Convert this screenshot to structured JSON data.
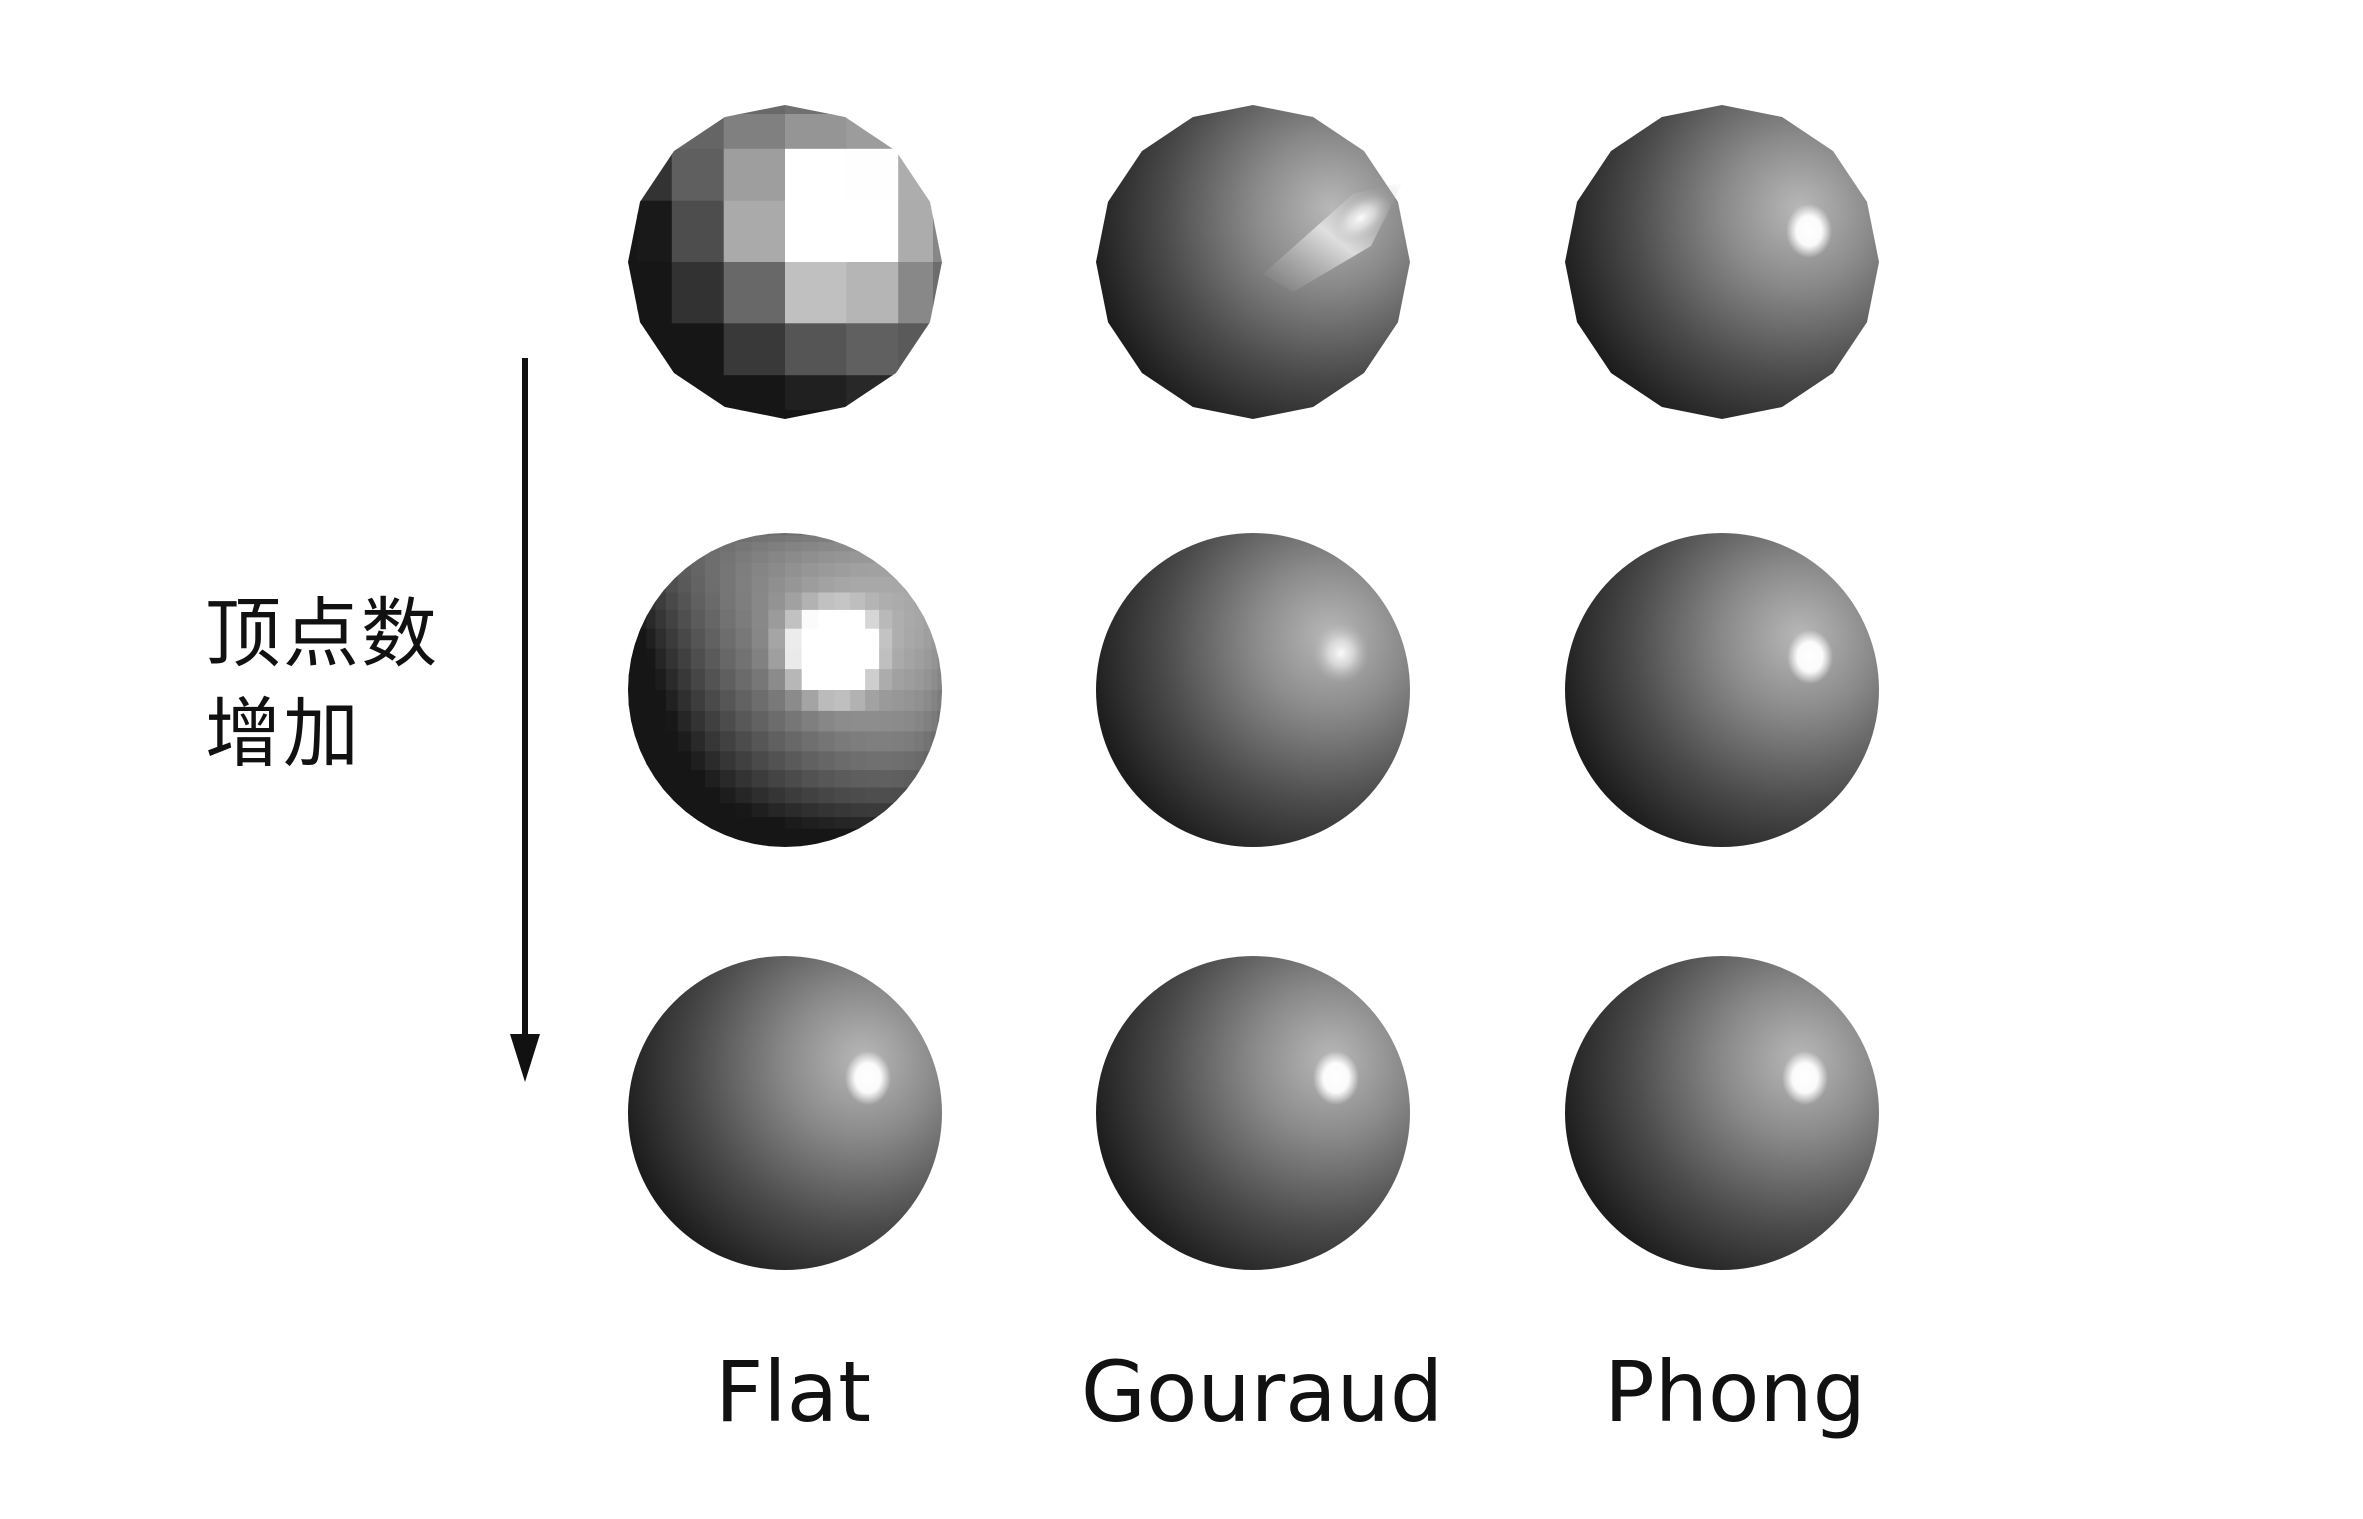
{
  "side_label": {
    "line1": "顶点数",
    "line2": "增加"
  },
  "columns": [
    {
      "label": "Flat",
      "shading": "flat"
    },
    {
      "label": "Gouraud",
      "shading": "gouraud"
    },
    {
      "label": "Phong",
      "shading": "phong"
    }
  ],
  "rows": [
    {
      "tessellation": "low"
    },
    {
      "tessellation": "medium"
    },
    {
      "tessellation": "high"
    }
  ],
  "colors": {
    "background": "#ffffff",
    "sphere_dark": "#141414",
    "sphere_mid": "#5a5a5a",
    "sphere_light": "#a8a8a8",
    "highlight": "#ffffff",
    "arrow": "#111111",
    "text": "#111111"
  }
}
